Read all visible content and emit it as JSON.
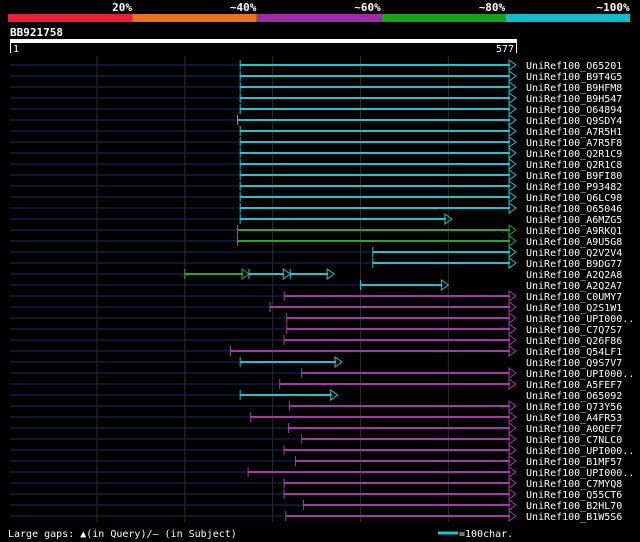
{
  "header": {
    "colorbar": [
      {
        "label": "20%",
        "color": "#e8203a"
      },
      {
        "label": "~40%",
        "color": "#e8721e"
      },
      {
        "label": "~60%",
        "color": "#9e2aa6"
      },
      {
        "label": "~80%",
        "color": "#1ca01c"
      },
      {
        "label": "~100%",
        "color": "#12bcc8"
      }
    ],
    "query_name": "BB921758",
    "ruler_start": "1",
    "ruler_end": "577"
  },
  "colors": {
    "c20": "#e8203a",
    "c40": "#e8721e",
    "c60": "#a43aa8",
    "c80": "#2aa52a",
    "c100": "#22c3cf",
    "stub": "#1a2c6a",
    "grid": "#2c2c2c"
  },
  "footer": {
    "legend": "Large gaps: ▲(in Query)/— (in Subject)",
    "scale_label": "=100char."
  },
  "chart_data": {
    "type": "alignment",
    "query_length": 577,
    "grid_positions": [
      100,
      200,
      300,
      400,
      500
    ],
    "hits": [
      {
        "label": "UniRef100_O65201",
        "segments": [
          {
            "start": 263,
            "end": 577,
            "color": "c100"
          }
        ]
      },
      {
        "label": "UniRef100_B9T4G5",
        "segments": [
          {
            "start": 263,
            "end": 577,
            "color": "c100"
          }
        ]
      },
      {
        "label": "UniRef100_B9HFM8",
        "segments": [
          {
            "start": 263,
            "end": 577,
            "color": "c100"
          }
        ]
      },
      {
        "label": "UniRef100_B9H547",
        "segments": [
          {
            "start": 263,
            "end": 577,
            "color": "c100"
          }
        ]
      },
      {
        "label": "UniRef100_O64894",
        "segments": [
          {
            "start": 263,
            "end": 577,
            "color": "c100"
          }
        ]
      },
      {
        "label": "UniRef100_Q9SDY4",
        "segments": [
          {
            "start": 260,
            "end": 577,
            "color": "c100"
          }
        ]
      },
      {
        "label": "UniRef100_A7R5H1",
        "segments": [
          {
            "start": 263,
            "end": 577,
            "color": "c100"
          }
        ]
      },
      {
        "label": "UniRef100_A7R5F8",
        "segments": [
          {
            "start": 263,
            "end": 577,
            "color": "c100"
          }
        ]
      },
      {
        "label": "UniRef100_Q2R1C9",
        "segments": [
          {
            "start": 263,
            "end": 577,
            "color": "c100"
          }
        ]
      },
      {
        "label": "UniRef100_Q2R1C8",
        "segments": [
          {
            "start": 263,
            "end": 577,
            "color": "c100"
          }
        ]
      },
      {
        "label": "UniRef100_B9FI80",
        "segments": [
          {
            "start": 263,
            "end": 577,
            "color": "c100"
          }
        ]
      },
      {
        "label": "UniRef100_P93482",
        "segments": [
          {
            "start": 263,
            "end": 577,
            "color": "c100"
          }
        ]
      },
      {
        "label": "UniRef100_Q6LC98",
        "segments": [
          {
            "start": 263,
            "end": 577,
            "color": "c100"
          }
        ]
      },
      {
        "label": "UniRef100_O65046",
        "segments": [
          {
            "start": 263,
            "end": 577,
            "color": "c100"
          }
        ]
      },
      {
        "label": "UniRef100_A6MZG5",
        "segments": [
          {
            "start": 263,
            "end": 504,
            "color": "c100"
          }
        ]
      },
      {
        "label": "UniRef100_A9RKQ1",
        "segments": [
          {
            "start": 260,
            "end": 577,
            "color": "c80"
          }
        ]
      },
      {
        "label": "UniRef100_A9U5G8",
        "segments": [
          {
            "start": 260,
            "end": 577,
            "color": "c80"
          }
        ]
      },
      {
        "label": "UniRef100_Q2V2V4",
        "segments": [
          {
            "start": 414,
            "end": 577,
            "color": "c100"
          }
        ]
      },
      {
        "label": "UniRef100_B9DG77",
        "segments": [
          {
            "start": 414,
            "end": 577,
            "color": "c100"
          }
        ]
      },
      {
        "label": "UniRef100_A2Q2A8",
        "segments": [
          {
            "start": 200,
            "end": 273,
            "color": "c80"
          },
          {
            "start": 273,
            "end": 320,
            "color": "c100"
          },
          {
            "start": 320,
            "end": 370,
            "color": "c100"
          }
        ]
      },
      {
        "label": "UniRef100_A2Q2A7",
        "segments": [
          {
            "start": 400,
            "end": 500,
            "color": "c100"
          }
        ]
      },
      {
        "label": "UniRef100_C0UMY7",
        "segments": [
          {
            "start": 313,
            "end": 577,
            "color": "c60"
          }
        ]
      },
      {
        "label": "UniRef100_Q2S1W1",
        "segments": [
          {
            "start": 297,
            "end": 577,
            "color": "c60"
          }
        ]
      },
      {
        "label": "UniRef100_UPI000..",
        "segments": [
          {
            "start": 316,
            "end": 577,
            "color": "c60"
          }
        ]
      },
      {
        "label": "UniRef100_C7Q7S7",
        "segments": [
          {
            "start": 316,
            "end": 577,
            "color": "c60"
          }
        ]
      },
      {
        "label": "UniRef100_Q26F86",
        "segments": [
          {
            "start": 313,
            "end": 577,
            "color": "c60"
          }
        ]
      },
      {
        "label": "UniRef100_Q54LF1",
        "segments": [
          {
            "start": 252,
            "end": 577,
            "color": "c60"
          }
        ]
      },
      {
        "label": "UniRef100_Q9S7V7",
        "segments": [
          {
            "start": 263,
            "end": 379,
            "color": "c100"
          }
        ]
      },
      {
        "label": "UniRef100_UPI000..",
        "segments": [
          {
            "start": 333,
            "end": 577,
            "color": "c60"
          }
        ]
      },
      {
        "label": "UniRef100_A5FEF7",
        "segments": [
          {
            "start": 308,
            "end": 577,
            "color": "c60"
          }
        ]
      },
      {
        "label": "UniRef100_O65092",
        "segments": [
          {
            "start": 263,
            "end": 374,
            "color": "c100"
          }
        ]
      },
      {
        "label": "UniRef100_Q73Y56",
        "segments": [
          {
            "start": 319,
            "end": 577,
            "color": "c60"
          }
        ]
      },
      {
        "label": "UniRef100_A4FR53",
        "segments": [
          {
            "start": 275,
            "end": 577,
            "color": "c60"
          }
        ]
      },
      {
        "label": "UniRef100_A0QEF7",
        "segments": [
          {
            "start": 318,
            "end": 577,
            "color": "c60"
          }
        ]
      },
      {
        "label": "UniRef100_C7NLC0",
        "segments": [
          {
            "start": 333,
            "end": 577,
            "color": "c60"
          }
        ]
      },
      {
        "label": "UniRef100_UPI000..",
        "segments": [
          {
            "start": 313,
            "end": 577,
            "color": "c60"
          }
        ]
      },
      {
        "label": "UniRef100_B1MF57",
        "segments": [
          {
            "start": 326,
            "end": 577,
            "color": "c60"
          }
        ]
      },
      {
        "label": "UniRef100_UPI000..",
        "segments": [
          {
            "start": 272,
            "end": 577,
            "color": "c60"
          }
        ]
      },
      {
        "label": "UniRef100_C7MYQ8",
        "segments": [
          {
            "start": 313,
            "end": 577,
            "color": "c60"
          }
        ]
      },
      {
        "label": "UniRef100_Q55CT6",
        "segments": [
          {
            "start": 313,
            "end": 577,
            "color": "c60"
          }
        ]
      },
      {
        "label": "UniRef100_B2HL70",
        "segments": [
          {
            "start": 335,
            "end": 577,
            "color": "c60"
          }
        ]
      },
      {
        "label": "UniRef100_B1W5S6",
        "segments": [
          {
            "start": 315,
            "end": 577,
            "color": "c60"
          }
        ]
      }
    ]
  }
}
